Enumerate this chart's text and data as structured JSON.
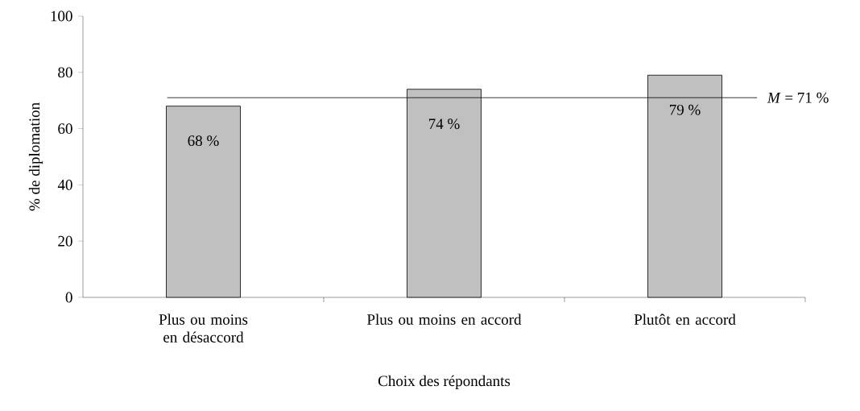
{
  "chart_data": {
    "type": "bar",
    "xlabel": "Choix des répondants",
    "ylabel": "% de diplomation",
    "categories": [
      "Plus ou moins en désaccord",
      "Plus ou moins en accord",
      "Plutôt en accord"
    ],
    "values": [
      68,
      74,
      79
    ],
    "value_labels": [
      "68 %",
      "74 %",
      "79 %"
    ],
    "color": "#c0c0c0",
    "ylim": [
      0,
      100
    ],
    "yticks": [
      0,
      20,
      40,
      60,
      80,
      100
    ],
    "ref_lines": [
      {
        "axis": "y",
        "value": 71,
        "label": "*M* = 71 %",
        "color": "#000000"
      }
    ]
  }
}
